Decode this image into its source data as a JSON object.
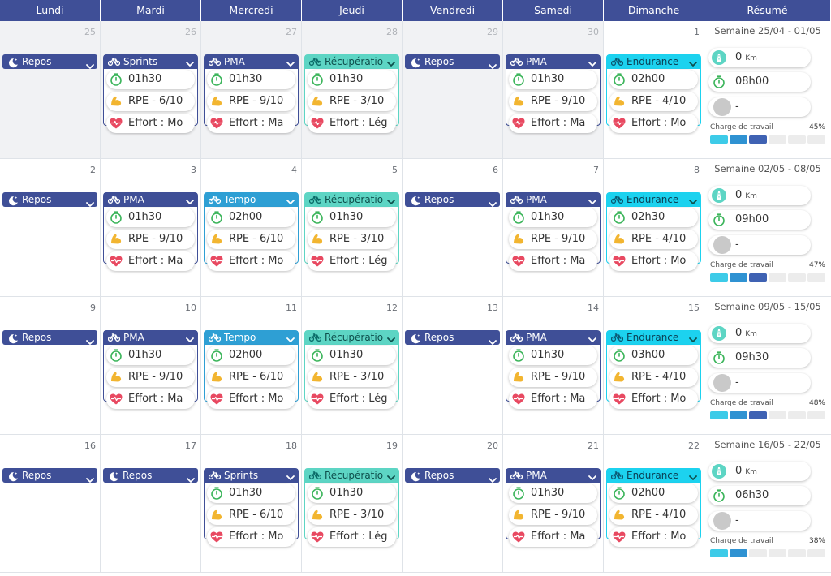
{
  "days": [
    "Lundi",
    "Mardi",
    "Mercredi",
    "Jeudi",
    "Vendredi",
    "Samedi",
    "Dimanche"
  ],
  "summary_header": "Résumé",
  "charge_label": "Charge de travail",
  "colors": {
    "header": "#3f4f97",
    "repos": "#3f4f97",
    "sprints": "#3f4f97",
    "pma": "#3f4f97",
    "tempo": "#2e9fd4",
    "recuperation": "#5dd5c4",
    "endurance": "#1cd2ef",
    "duration_icon": "#3cb55b",
    "rpe_icon": "#f2b530",
    "effort_icon": "#e84961"
  },
  "weeks": [
    {
      "days": [
        {
          "num": "25",
          "past": true,
          "type": "repos",
          "title": "Repos"
        },
        {
          "num": "26",
          "past": true,
          "type": "sprints",
          "title": "Sprints",
          "duration": "01h30",
          "rpe": "RPE - 6/10",
          "effort": "Effort : Mo"
        },
        {
          "num": "27",
          "past": true,
          "type": "pma",
          "title": "PMA",
          "duration": "01h30",
          "rpe": "RPE - 9/10",
          "effort": "Effort : Ma"
        },
        {
          "num": "28",
          "past": true,
          "type": "recuperation",
          "title": "Récupératio",
          "duration": "01h30",
          "rpe": "RPE - 3/10",
          "effort": "Effort : Lég"
        },
        {
          "num": "29",
          "past": true,
          "type": "repos",
          "title": "Repos"
        },
        {
          "num": "30",
          "past": true,
          "type": "pma",
          "title": "PMA",
          "duration": "01h30",
          "rpe": "RPE - 9/10",
          "effort": "Effort : Ma"
        },
        {
          "num": "1",
          "past": false,
          "type": "endurance",
          "title": "Endurance",
          "duration": "02h00",
          "rpe": "RPE - 4/10",
          "effort": "Effort : Mo"
        }
      ],
      "summary": {
        "label": "Semaine 25/04 - 01/05",
        "distance": "0",
        "unit": "Km",
        "time": "08h00",
        "other": "-",
        "charge": "45%",
        "filled": 3
      }
    },
    {
      "days": [
        {
          "num": "2",
          "past": false,
          "type": "repos",
          "title": "Repos"
        },
        {
          "num": "3",
          "past": false,
          "type": "pma",
          "title": "PMA",
          "duration": "01h30",
          "rpe": "RPE - 9/10",
          "effort": "Effort : Ma"
        },
        {
          "num": "4",
          "past": false,
          "type": "tempo",
          "title": "Tempo",
          "duration": "02h00",
          "rpe": "RPE - 6/10",
          "effort": "Effort : Mo"
        },
        {
          "num": "5",
          "past": false,
          "type": "recuperation",
          "title": "Récupératio",
          "duration": "01h30",
          "rpe": "RPE - 3/10",
          "effort": "Effort : Lég"
        },
        {
          "num": "6",
          "past": false,
          "type": "repos",
          "title": "Repos"
        },
        {
          "num": "7",
          "past": false,
          "type": "pma",
          "title": "PMA",
          "duration": "01h30",
          "rpe": "RPE - 9/10",
          "effort": "Effort : Ma"
        },
        {
          "num": "8",
          "past": false,
          "type": "endurance",
          "title": "Endurance",
          "duration": "02h30",
          "rpe": "RPE - 4/10",
          "effort": "Effort : Mo"
        }
      ],
      "summary": {
        "label": "Semaine 02/05 - 08/05",
        "distance": "0",
        "unit": "Km",
        "time": "09h00",
        "other": "-",
        "charge": "47%",
        "filled": 3
      }
    },
    {
      "days": [
        {
          "num": "9",
          "past": false,
          "type": "repos",
          "title": "Repos"
        },
        {
          "num": "10",
          "past": false,
          "type": "pma",
          "title": "PMA",
          "duration": "01h30",
          "rpe": "RPE - 9/10",
          "effort": "Effort : Ma"
        },
        {
          "num": "11",
          "past": false,
          "type": "tempo",
          "title": "Tempo",
          "duration": "02h00",
          "rpe": "RPE - 6/10",
          "effort": "Effort : Mo"
        },
        {
          "num": "12",
          "past": false,
          "type": "recuperation",
          "title": "Récupératio",
          "duration": "01h30",
          "rpe": "RPE - 3/10",
          "effort": "Effort : Lég"
        },
        {
          "num": "13",
          "past": false,
          "type": "repos",
          "title": "Repos"
        },
        {
          "num": "14",
          "past": false,
          "type": "pma",
          "title": "PMA",
          "duration": "01h30",
          "rpe": "RPE - 9/10",
          "effort": "Effort : Ma"
        },
        {
          "num": "15",
          "past": false,
          "type": "endurance",
          "title": "Endurance",
          "duration": "03h00",
          "rpe": "RPE - 4/10",
          "effort": "Effort : Mo"
        }
      ],
      "summary": {
        "label": "Semaine 09/05 - 15/05",
        "distance": "0",
        "unit": "Km",
        "time": "09h30",
        "other": "-",
        "charge": "48%",
        "filled": 3
      }
    },
    {
      "days": [
        {
          "num": "16",
          "past": false,
          "type": "repos",
          "title": "Repos"
        },
        {
          "num": "17",
          "past": false,
          "type": "repos",
          "title": "Repos"
        },
        {
          "num": "18",
          "past": false,
          "type": "sprints",
          "title": "Sprints",
          "duration": "01h30",
          "rpe": "RPE - 6/10",
          "effort": "Effort : Mo"
        },
        {
          "num": "19",
          "past": false,
          "type": "recuperation",
          "title": "Récupératio",
          "duration": "01h30",
          "rpe": "RPE - 3/10",
          "effort": "Effort : Lég"
        },
        {
          "num": "20",
          "past": false,
          "type": "repos",
          "title": "Repos"
        },
        {
          "num": "21",
          "past": false,
          "type": "pma",
          "title": "PMA",
          "duration": "01h30",
          "rpe": "RPE - 9/10",
          "effort": "Effort : Ma"
        },
        {
          "num": "22",
          "past": false,
          "type": "endurance",
          "title": "Endurance",
          "duration": "02h00",
          "rpe": "RPE - 4/10",
          "effort": "Effort : Mo"
        }
      ],
      "summary": {
        "label": "Semaine 16/05 - 22/05",
        "distance": "0",
        "unit": "Km",
        "time": "06h30",
        "other": "-",
        "charge": "38%",
        "filled": 2
      }
    }
  ]
}
